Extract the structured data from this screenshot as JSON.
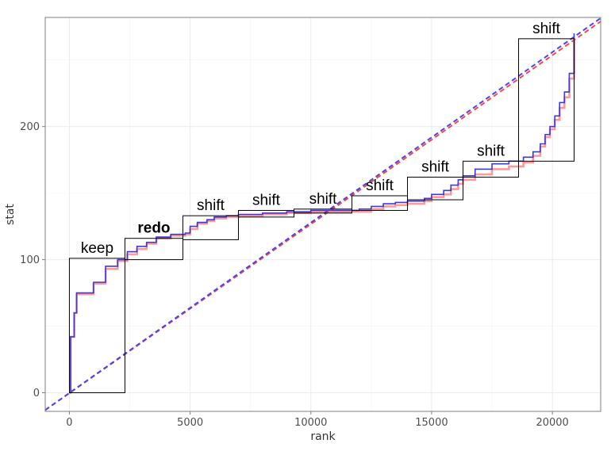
{
  "chart_data": {
    "type": "line",
    "xlabel": "rank",
    "ylabel": "stat",
    "xlim": [
      -1000,
      22000
    ],
    "ylim": [
      -14,
      282
    ],
    "x_ticks": [
      0,
      5000,
      10000,
      15000,
      20000
    ],
    "x_tick_labels": [
      "0",
      "5000",
      "10000",
      "15000",
      "20000"
    ],
    "y_ticks": [
      0,
      100,
      200
    ],
    "y_tick_labels": [
      "0",
      "100",
      "200"
    ],
    "y_minor_ticks": [
      50,
      150,
      250
    ],
    "x_minor_ticks": [
      2500,
      7500,
      12500,
      17500
    ],
    "grid": true,
    "background": "#ffffff",
    "grid_color": "#ebebeb",
    "series": [
      {
        "color": "#ff7777",
        "style": "step",
        "x": [
          0,
          50,
          200,
          300,
          500,
          1000,
          1500,
          2000,
          2400,
          2800,
          3200,
          3600,
          4200,
          4800,
          5000,
          5300,
          5700,
          6000,
          6500,
          7000,
          8000,
          9000,
          10000,
          11000,
          12000,
          12500,
          13000,
          13500,
          14000,
          14700,
          15000,
          15500,
          15800,
          16100,
          16300,
          16800,
          17500,
          18200,
          18800,
          19200,
          19500,
          19700,
          19900,
          20100,
          20300,
          20500,
          20700,
          20900
        ],
        "y": [
          0,
          42,
          60,
          74,
          74,
          82,
          93,
          99,
          104,
          108,
          112,
          116,
          118,
          119,
          123,
          127,
          129,
          131,
          132,
          133,
          134,
          135,
          136,
          136,
          136,
          138,
          140,
          141,
          142,
          144,
          147,
          149,
          153,
          157,
          160,
          164,
          168,
          170,
          173,
          178,
          185,
          192,
          198,
          205,
          214,
          222,
          236,
          265
        ]
      },
      {
        "color": "#3a3adf",
        "style": "step",
        "x": [
          0,
          50,
          200,
          300,
          500,
          1000,
          1500,
          2000,
          2400,
          2800,
          3200,
          3600,
          4200,
          4800,
          5000,
          5300,
          5700,
          6000,
          6500,
          7000,
          8000,
          9000,
          10000,
          11000,
          12000,
          12500,
          13000,
          13500,
          14000,
          14700,
          15000,
          15500,
          15800,
          16100,
          16300,
          16800,
          17500,
          18200,
          18800,
          19200,
          19500,
          19700,
          19900,
          20100,
          20300,
          20500,
          20700,
          20900
        ],
        "y": [
          0,
          42,
          60,
          75,
          75,
          83,
          95,
          100,
          106,
          110,
          113,
          117,
          119,
          120,
          125,
          128,
          130,
          132,
          133,
          134,
          135,
          136,
          137,
          137,
          138,
          140,
          142,
          143,
          144,
          146,
          149,
          152,
          156,
          160,
          163,
          168,
          172,
          174,
          177,
          181,
          187,
          194,
          200,
          208,
          218,
          226,
          240,
          270
        ]
      },
      {
        "color": "#ff4444",
        "style": "dashed",
        "x": [
          -1000,
          22000
        ],
        "y": [
          -13.0,
          279.0
        ]
      },
      {
        "color": "#4444ff",
        "style": "dashed",
        "x": [
          -1000,
          22000
        ],
        "y": [
          -13.0,
          281.5
        ]
      }
    ],
    "annotations": [
      {
        "label": "keep",
        "bold": false,
        "x": [
          0,
          2300
        ],
        "y": [
          0,
          101
        ]
      },
      {
        "label": "redo",
        "bold": true,
        "x": [
          2300,
          4700
        ],
        "y": [
          100,
          116
        ]
      },
      {
        "label": "shift",
        "bold": false,
        "x": [
          4700,
          7000
        ],
        "y": [
          115,
          133
        ]
      },
      {
        "label": "shift",
        "bold": false,
        "x": [
          7000,
          9300
        ],
        "y": [
          132,
          137
        ]
      },
      {
        "label": "shift",
        "bold": false,
        "x": [
          9300,
          11700
        ],
        "y": [
          135,
          138
        ]
      },
      {
        "label": "shift",
        "bold": false,
        "x": [
          11700,
          14000
        ],
        "y": [
          137,
          148
        ]
      },
      {
        "label": "shift",
        "bold": false,
        "x": [
          14000,
          16300
        ],
        "y": [
          145,
          162
        ]
      },
      {
        "label": "shift",
        "bold": false,
        "x": [
          16300,
          18600
        ],
        "y": [
          162,
          174
        ]
      },
      {
        "label": "shift",
        "bold": false,
        "x": [
          18600,
          20900
        ],
        "y": [
          174,
          266
        ]
      }
    ]
  }
}
